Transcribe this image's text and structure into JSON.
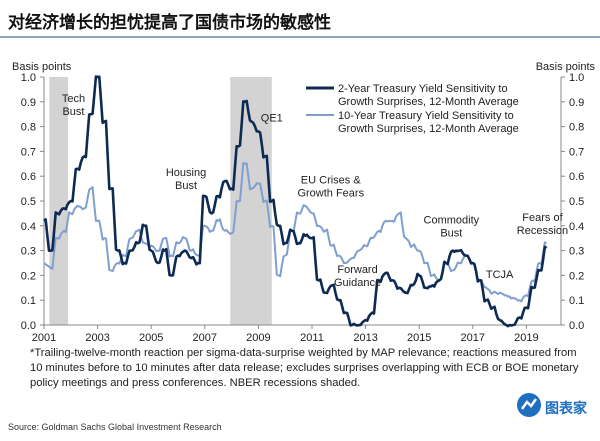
{
  "header": {
    "title": "对经济增长的担忧提高了国债市场的敏感性"
  },
  "chart_data": {
    "type": "line",
    "ylabel_left": "Basis points",
    "ylabel_right": "Basis points",
    "ylim": [
      0,
      1.0
    ],
    "yticks": [
      "0.0",
      "0.1",
      "0.2",
      "0.3",
      "0.4",
      "0.5",
      "0.6",
      "0.7",
      "0.8",
      "0.9",
      "1.0"
    ],
    "xlim": [
      2001,
      2020.3
    ],
    "xticks": [
      "2001",
      "2003",
      "2005",
      "2007",
      "2009",
      "2011",
      "2013",
      "2015",
      "2017",
      "2019"
    ],
    "legend_position": "top-right",
    "recessions": [
      [
        2001.2,
        2001.9
      ],
      [
        2007.95,
        2009.5
      ]
    ],
    "x_start": 2001.0,
    "x_step": 0.25,
    "series": [
      {
        "name": "2-Year Treasury Yield Sensitivity to Growth Surprises, 12-Month Average",
        "color": "#0d2b52",
        "values": [
          0.42,
          0.3,
          0.45,
          0.47,
          0.5,
          0.63,
          0.68,
          0.85,
          1.0,
          0.82,
          0.55,
          0.3,
          0.25,
          0.3,
          0.33,
          0.4,
          0.3,
          0.25,
          0.3,
          0.2,
          0.28,
          0.3,
          0.27,
          0.25,
          0.52,
          0.45,
          0.52,
          0.58,
          0.55,
          0.72,
          0.9,
          0.82,
          0.78,
          0.68,
          0.5,
          0.4,
          0.33,
          0.38,
          0.33,
          0.36,
          0.35,
          0.18,
          0.13,
          0.16,
          0.1,
          0.05,
          0.0,
          0.0,
          0.02,
          0.05,
          0.18,
          0.21,
          0.18,
          0.15,
          0.13,
          0.16,
          0.2,
          0.15,
          0.16,
          0.18,
          0.25,
          0.3,
          0.3,
          0.28,
          0.25,
          0.18,
          0.1,
          0.07,
          0.02,
          0.0,
          0.0,
          0.03,
          0.07,
          0.15,
          0.22,
          0.31
        ]
      },
      {
        "name": "10-Year Treasury Yield Sensitivity to Growth Surprises, 12-Month Average",
        "color": "#7f9fcf",
        "values": [
          0.25,
          0.23,
          0.35,
          0.38,
          0.45,
          0.48,
          0.47,
          0.55,
          0.42,
          0.35,
          0.22,
          0.25,
          0.28,
          0.35,
          0.38,
          0.33,
          0.32,
          0.3,
          0.35,
          0.28,
          0.33,
          0.35,
          0.3,
          0.28,
          0.4,
          0.38,
          0.42,
          0.38,
          0.37,
          0.5,
          0.65,
          0.55,
          0.57,
          0.5,
          0.4,
          0.2,
          0.28,
          0.38,
          0.45,
          0.48,
          0.45,
          0.4,
          0.38,
          0.32,
          0.28,
          0.25,
          0.27,
          0.3,
          0.32,
          0.35,
          0.38,
          0.42,
          0.42,
          0.45,
          0.35,
          0.32,
          0.3,
          0.25,
          0.2,
          0.18,
          0.25,
          0.22,
          0.25,
          0.28,
          0.25,
          0.18,
          0.15,
          0.13,
          0.13,
          0.12,
          0.11,
          0.1,
          0.12,
          0.18,
          0.25,
          0.33
        ]
      }
    ],
    "legend": [
      [
        "2-Year Treasury Yield Sensitivity to",
        "Growth Surprises, 12-Month Average"
      ],
      [
        "10-Year Treasury Yield Sensitivity to",
        "Growth Surprises, 12-Month Average"
      ]
    ],
    "annotations": [
      {
        "lines": [
          "Tech",
          "Bust"
        ],
        "x": 2002.1,
        "y": 0.9
      },
      {
        "lines": [
          "Housing",
          "Bust"
        ],
        "x": 2006.3,
        "y": 0.6
      },
      {
        "lines": [
          "QE1"
        ],
        "x": 2009.5,
        "y": 0.82
      },
      {
        "lines": [
          "EU Crises &",
          "Growth Fears"
        ],
        "x": 2011.7,
        "y": 0.57
      },
      {
        "lines": [
          "Forward",
          "Guidance"
        ],
        "x": 2012.7,
        "y": 0.21
      },
      {
        "lines": [
          "Commodity",
          "Bust"
        ],
        "x": 2016.2,
        "y": 0.41
      },
      {
        "lines": [
          "TCJA"
        ],
        "x": 2018.0,
        "y": 0.19
      },
      {
        "lines": [
          "Fears of",
          "Recession"
        ],
        "x": 2019.6,
        "y": 0.42
      }
    ]
  },
  "footnote": "*Trailing-twelve-month reaction per sigma-data-surprise weighted by MAP relevance; reactions measured from 10 minutes before to 10 minutes after  data release; excludes surprises overlapping with ECB or BOE monetary policy meetings and press conferences. NBER recessions shaded.",
  "source": "Source: Goldman Sachs Global Investment Research",
  "logo": {
    "text": "图表家"
  }
}
